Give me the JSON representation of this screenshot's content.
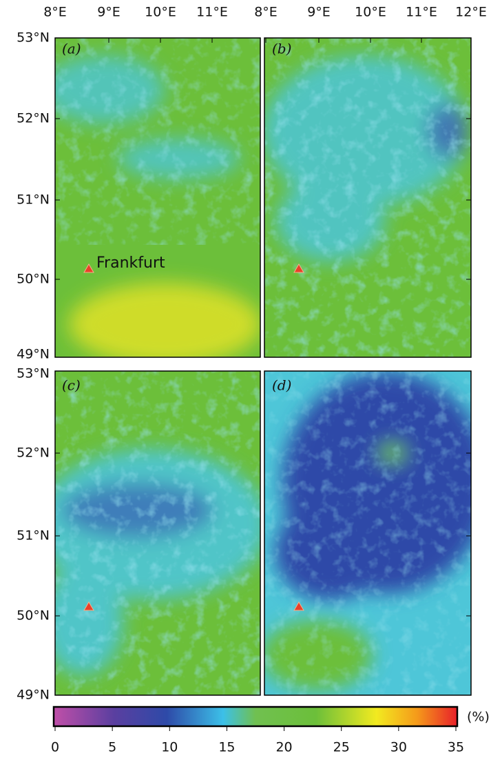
{
  "lon_labels_left": [
    "8°E",
    "9°E",
    "10°E",
    "11°E"
  ],
  "lon_labels_right": [
    "8°E",
    "9°E",
    "10°E",
    "11°E",
    "12°E"
  ],
  "lat_labels_top": [
    "53°N",
    "52°N",
    "51°N",
    "50°N",
    "49°N"
  ],
  "lat_labels_bottom": [
    "53°N",
    "52°N",
    "51°N",
    "50°N",
    "49°N"
  ],
  "panels": [
    "(a)",
    "(b)",
    "(c)",
    "(d)"
  ],
  "city": "Frankfurt",
  "colorbar": {
    "lim": [
      0,
      35
    ],
    "ticks": [
      0,
      5,
      10,
      15,
      20,
      25,
      30,
      35
    ],
    "unit": "(%)"
  }
}
